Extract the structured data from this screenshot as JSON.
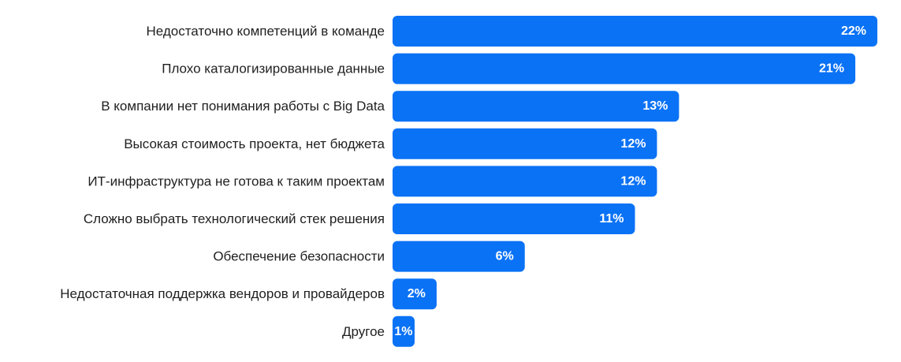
{
  "chart_data": {
    "type": "bar",
    "orientation": "horizontal",
    "title": "",
    "xlabel": "",
    "ylabel": "",
    "categories": [
      "Недостаточно компетенций в команде",
      "Плохо каталогизированные данные",
      "В компании нет понимания работы с Big Data",
      "Высокая стоимость проекта, нет бюджета",
      "ИТ-инфраструктура не готова к таким проектам",
      "Сложно выбрать технологический стек решения",
      "Обеспечение безопасности",
      "Недостаточная поддержка вендоров и провайдеров",
      "Другое"
    ],
    "values": [
      22,
      21,
      13,
      12,
      12,
      11,
      6,
      2,
      1
    ],
    "value_labels": [
      "22%",
      "21%",
      "13%",
      "12%",
      "12%",
      "11%",
      "6%",
      "2%",
      "1%"
    ],
    "xlim": [
      0,
      22
    ],
    "grid": false,
    "legend": "none",
    "bar_color": "#0a72f5",
    "value_label_color": "#ffffff",
    "category_label_color": "#1f1f1f"
  }
}
